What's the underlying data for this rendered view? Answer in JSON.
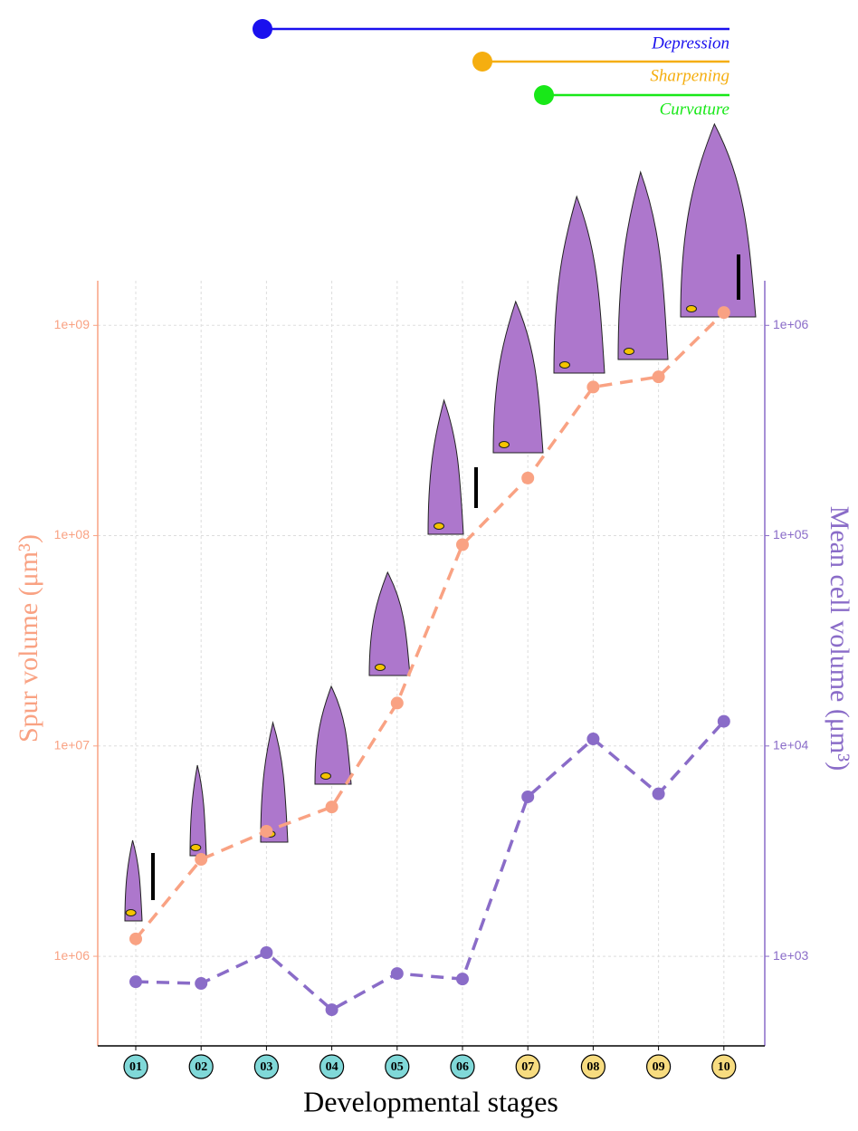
{
  "chart_data": {
    "type": "line",
    "x_label": "Developmental stages",
    "y_label": "Spur volume (μm³)",
    "y2_label": "Mean cell volume (μm³)",
    "categories": [
      "01",
      "02",
      "03",
      "04",
      "05",
      "06",
      "07",
      "08",
      "09",
      "10"
    ],
    "category_colors": [
      "#80d8d8",
      "#80d8d8",
      "#80d8d8",
      "#80d8d8",
      "#80d8d8",
      "#80d8d8",
      "#f7dc80",
      "#f7dc80",
      "#f7dc80",
      "#f7dc80"
    ],
    "log_scale": true,
    "grid": true,
    "ylim": [
      375000,
      1630000000
    ],
    "yticks": [
      {
        "value": 1000000,
        "label": "1e+06"
      },
      {
        "value": 10000000,
        "label": "1e+07"
      },
      {
        "value": 100000000,
        "label": "1e+08"
      },
      {
        "value": 1000000000,
        "label": "1e+09"
      }
    ],
    "y2lim": [
      375,
      1630000
    ],
    "y2ticks": [
      {
        "value": 1000,
        "label": "1e+03"
      },
      {
        "value": 10000,
        "label": "1e+04"
      },
      {
        "value": 100000,
        "label": "1e+05"
      },
      {
        "value": 1000000,
        "label": "1e+06"
      }
    ],
    "y_color": "#f9a283",
    "y2_color": "#8a6cc8",
    "series": [
      {
        "color": "#f9a283",
        "values": [
          1210000,
          2890000,
          3930000,
          5130000,
          16000000,
          90600000,
          188000000,
          509000000,
          569000000,
          1150000000
        ]
      },
      {
        "color": "#8a6cc8",
        "axis": "y2",
        "values": [
          757,
          743,
          1041,
          557,
          828,
          780,
          5730,
          10800,
          5920,
          13100
        ]
      }
    ],
    "annotations": [
      {
        "text": "Depression",
        "color": "#1a10ee"
      },
      {
        "text": "Sharpening",
        "color": "#f5ae10"
      },
      {
        "text": "Curvature",
        "color": "#18e818"
      }
    ]
  }
}
